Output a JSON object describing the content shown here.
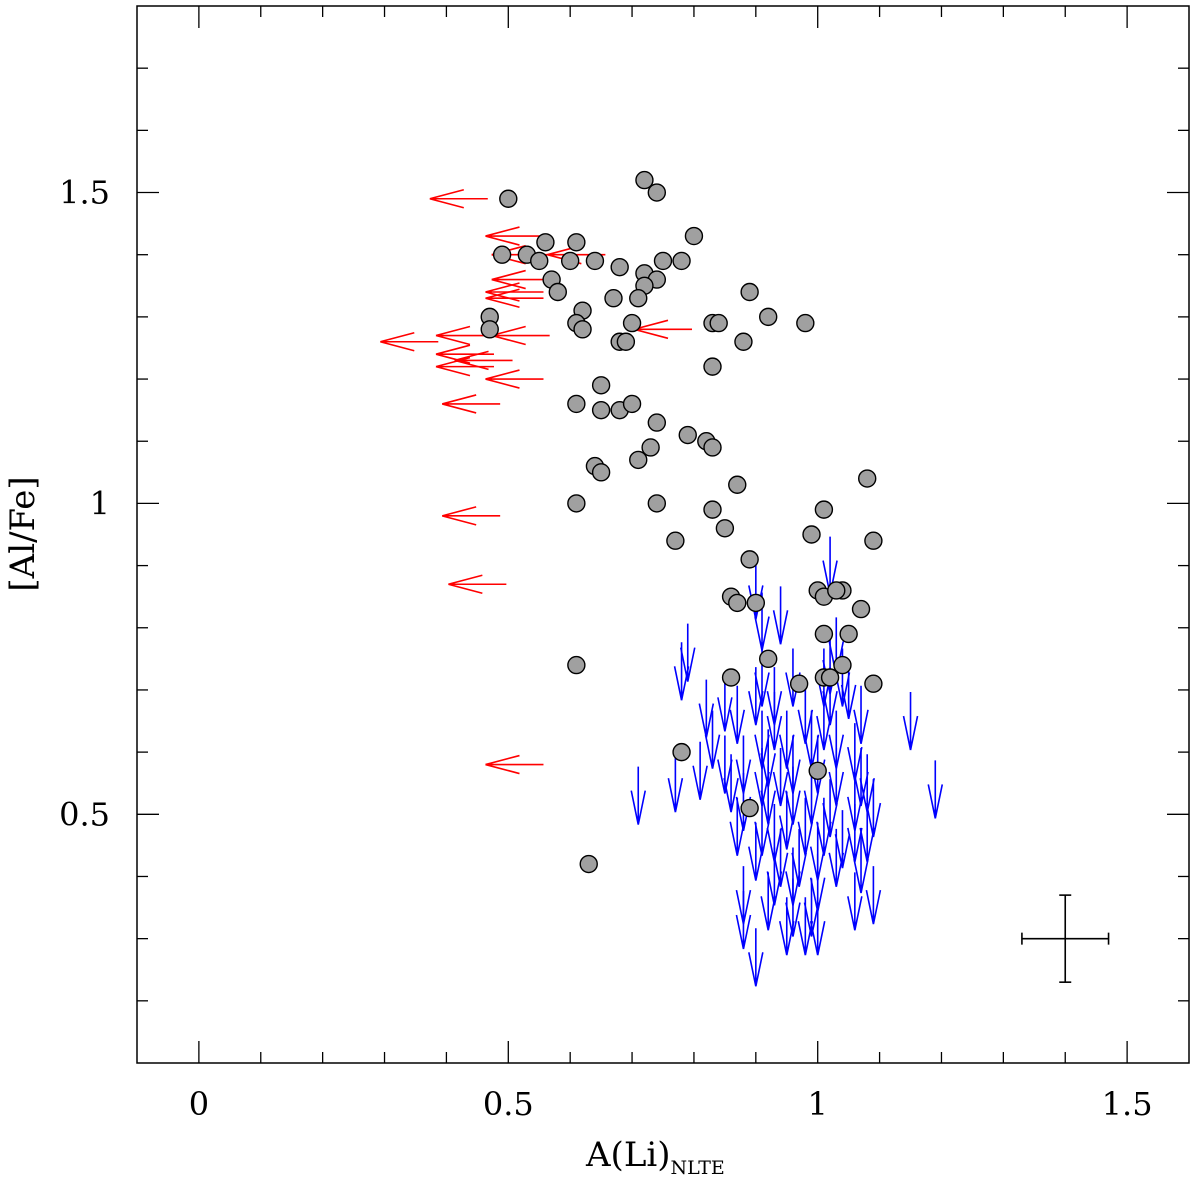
{
  "chart_data": {
    "type": "scatter",
    "xlabel": "A(Li)",
    "xlabel_subscript": "NLTE",
    "ylabel": "[Al/Fe]",
    "xlim": [
      -0.1,
      1.6
    ],
    "ylim": [
      0.1,
      1.8
    ],
    "x_ticks": [
      0,
      0.5,
      1,
      1.5
    ],
    "x_tick_labels": [
      "0",
      "0.5",
      "1",
      "1.5"
    ],
    "y_ticks": [
      0.5,
      1,
      1.5
    ],
    "y_tick_labels": [
      "0.5",
      "1",
      "1.5"
    ],
    "grid": false,
    "series": [
      {
        "marker": "filled-circle",
        "color": "#a0a0a0",
        "edge_color": "#000000",
        "points": [
          [
            0.5,
            1.49
          ],
          [
            0.72,
            1.52
          ],
          [
            0.74,
            1.5
          ],
          [
            0.8,
            1.43
          ],
          [
            0.49,
            1.4
          ],
          [
            0.53,
            1.4
          ],
          [
            0.56,
            1.42
          ],
          [
            0.61,
            1.42
          ],
          [
            0.55,
            1.39
          ],
          [
            0.6,
            1.39
          ],
          [
            0.64,
            1.39
          ],
          [
            0.68,
            1.38
          ],
          [
            0.72,
            1.37
          ],
          [
            0.75,
            1.39
          ],
          [
            0.78,
            1.39
          ],
          [
            0.57,
            1.36
          ],
          [
            0.74,
            1.36
          ],
          [
            0.72,
            1.35
          ],
          [
            0.58,
            1.34
          ],
          [
            0.67,
            1.33
          ],
          [
            0.71,
            1.33
          ],
          [
            0.89,
            1.34
          ],
          [
            0.47,
            1.3
          ],
          [
            0.62,
            1.31
          ],
          [
            0.61,
            1.29
          ],
          [
            0.62,
            1.28
          ],
          [
            0.7,
            1.29
          ],
          [
            0.83,
            1.29
          ],
          [
            0.84,
            1.29
          ],
          [
            0.92,
            1.3
          ],
          [
            0.98,
            1.29
          ],
          [
            0.47,
            1.28
          ],
          [
            0.68,
            1.26
          ],
          [
            0.69,
            1.26
          ],
          [
            0.88,
            1.26
          ],
          [
            0.83,
            1.22
          ],
          [
            0.65,
            1.19
          ],
          [
            0.61,
            1.16
          ],
          [
            0.65,
            1.15
          ],
          [
            0.68,
            1.15
          ],
          [
            0.7,
            1.16
          ],
          [
            0.74,
            1.13
          ],
          [
            0.79,
            1.11
          ],
          [
            0.82,
            1.1
          ],
          [
            0.83,
            1.09
          ],
          [
            0.73,
            1.09
          ],
          [
            0.71,
            1.07
          ],
          [
            0.64,
            1.06
          ],
          [
            0.65,
            1.05
          ],
          [
            0.87,
            1.03
          ],
          [
            1.08,
            1.04
          ],
          [
            0.61,
            1.0
          ],
          [
            0.74,
            1.0
          ],
          [
            0.83,
            0.99
          ],
          [
            1.01,
            0.99
          ],
          [
            0.85,
            0.96
          ],
          [
            0.99,
            0.95
          ],
          [
            1.09,
            0.94
          ],
          [
            0.77,
            0.94
          ],
          [
            0.89,
            0.91
          ],
          [
            0.86,
            0.85
          ],
          [
            0.87,
            0.84
          ],
          [
            0.9,
            0.84
          ],
          [
            1.0,
            0.86
          ],
          [
            1.01,
            0.85
          ],
          [
            1.04,
            0.86
          ],
          [
            1.03,
            0.86
          ],
          [
            1.07,
            0.83
          ],
          [
            1.01,
            0.79
          ],
          [
            1.05,
            0.79
          ],
          [
            0.92,
            0.75
          ],
          [
            1.04,
            0.74
          ],
          [
            0.61,
            0.74
          ],
          [
            0.86,
            0.72
          ],
          [
            0.97,
            0.71
          ],
          [
            1.01,
            0.72
          ],
          [
            1.02,
            0.72
          ],
          [
            1.09,
            0.71
          ],
          [
            0.78,
            0.6
          ],
          [
            1.0,
            0.57
          ],
          [
            0.89,
            0.51
          ],
          [
            0.63,
            0.42
          ]
        ]
      },
      {
        "marker": "arrow-left",
        "color": "#ff0000",
        "points": [
          [
            0.42,
            1.49
          ],
          [
            0.51,
            1.43
          ],
          [
            0.52,
            1.4
          ],
          [
            0.61,
            1.4
          ],
          [
            0.52,
            1.36
          ],
          [
            0.51,
            1.34
          ],
          [
            0.51,
            1.33
          ],
          [
            0.75,
            1.28
          ],
          [
            0.52,
            1.27
          ],
          [
            0.43,
            1.27
          ],
          [
            0.34,
            1.26
          ],
          [
            0.43,
            1.24
          ],
          [
            0.46,
            1.23
          ],
          [
            0.43,
            1.22
          ],
          [
            0.51,
            1.2
          ],
          [
            0.44,
            1.16
          ],
          [
            0.44,
            0.98
          ],
          [
            0.45,
            0.87
          ],
          [
            0.51,
            0.58
          ]
        ]
      },
      {
        "marker": "arrow-down",
        "color": "#0000ff",
        "points": [
          [
            1.02,
            0.9
          ],
          [
            0.9,
            0.86
          ],
          [
            0.94,
            0.82
          ],
          [
            0.91,
            0.81
          ],
          [
            0.79,
            0.76
          ],
          [
            1.03,
            0.77
          ],
          [
            1.02,
            0.74
          ],
          [
            1.04,
            0.72
          ],
          [
            0.78,
            0.73
          ],
          [
            0.91,
            0.72
          ],
          [
            0.96,
            0.72
          ],
          [
            1.01,
            0.72
          ],
          [
            1.02,
            0.69
          ],
          [
            1.05,
            0.7
          ],
          [
            0.9,
            0.69
          ],
          [
            0.93,
            0.69
          ],
          [
            0.85,
            0.68
          ],
          [
            0.82,
            0.67
          ],
          [
            0.87,
            0.66
          ],
          [
            0.93,
            0.65
          ],
          [
            0.98,
            0.66
          ],
          [
            1.01,
            0.65
          ],
          [
            1.07,
            0.66
          ],
          [
            1.15,
            0.65
          ],
          [
            0.83,
            0.62
          ],
          [
            0.91,
            0.62
          ],
          [
            0.95,
            0.62
          ],
          [
            0.99,
            0.62
          ],
          [
            1.03,
            0.62
          ],
          [
            1.06,
            0.6
          ],
          [
            0.85,
            0.58
          ],
          [
            0.88,
            0.58
          ],
          [
            0.92,
            0.59
          ],
          [
            0.96,
            0.58
          ],
          [
            1.0,
            0.58
          ],
          [
            0.81,
            0.57
          ],
          [
            0.86,
            0.55
          ],
          [
            0.91,
            0.56
          ],
          [
            0.94,
            0.56
          ],
          [
            1.03,
            0.56
          ],
          [
            1.07,
            0.56
          ],
          [
            1.08,
            0.55
          ],
          [
            0.77,
            0.55
          ],
          [
            1.19,
            0.54
          ],
          [
            0.71,
            0.53
          ],
          [
            0.88,
            0.52
          ],
          [
            0.92,
            0.53
          ],
          [
            0.96,
            0.53
          ],
          [
            0.99,
            0.53
          ],
          [
            1.02,
            0.51
          ],
          [
            1.06,
            0.52
          ],
          [
            1.09,
            0.51
          ],
          [
            0.87,
            0.48
          ],
          [
            0.91,
            0.48
          ],
          [
            0.93,
            0.47
          ],
          [
            0.95,
            0.49
          ],
          [
            0.98,
            0.48
          ],
          [
            1.01,
            0.48
          ],
          [
            1.04,
            0.46
          ],
          [
            1.06,
            0.47
          ],
          [
            1.08,
            0.47
          ],
          [
            0.9,
            0.44
          ],
          [
            0.94,
            0.43
          ],
          [
            0.97,
            0.43
          ],
          [
            1.0,
            0.44
          ],
          [
            1.03,
            0.43
          ],
          [
            1.07,
            0.42
          ],
          [
            0.93,
            0.4
          ],
          [
            0.96,
            0.4
          ],
          [
            1.0,
            0.39
          ],
          [
            0.88,
            0.37
          ],
          [
            0.92,
            0.36
          ],
          [
            0.96,
            0.35
          ],
          [
            0.99,
            0.35
          ],
          [
            1.06,
            0.36
          ],
          [
            1.09,
            0.37
          ],
          [
            0.88,
            0.33
          ],
          [
            0.95,
            0.32
          ],
          [
            0.98,
            0.32
          ],
          [
            1.0,
            0.32
          ],
          [
            0.9,
            0.27
          ]
        ]
      }
    ],
    "error_bar": {
      "x": 1.4,
      "y": 0.3,
      "xerr": 0.07,
      "yerr": 0.07
    }
  }
}
